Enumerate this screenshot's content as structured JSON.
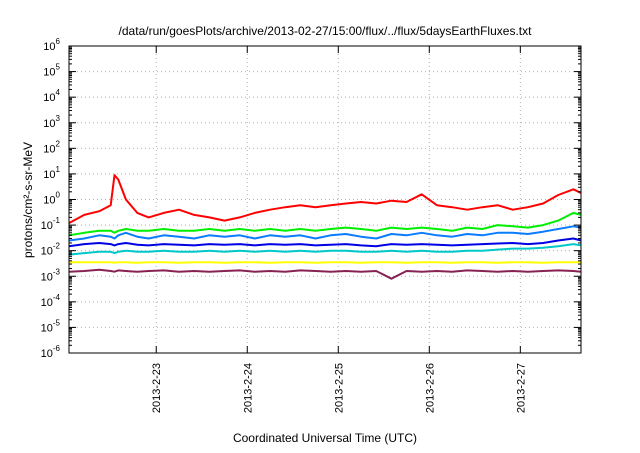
{
  "chart_data": {
    "type": "line",
    "title": "/data/run/goesPlots/archive/2013-02-27/15:00/flux/../flux/5daysEarthFluxes.txt",
    "xlabel": "Coordinated Universal Time (UTC)",
    "ylabel": "protons/cm²-s-sr-MeV",
    "yscale": "log",
    "ylim": [
      1e-06,
      1000000.0
    ],
    "xlim": [
      "2013-02-22T01:00",
      "2013-02-27T16:00"
    ],
    "grid": true,
    "legend": "none",
    "x_tick_labels": [
      "2013-2-23",
      "2013-2-24",
      "2013-2-25",
      "2013-2-26",
      "2013-2-27"
    ],
    "y_tick_labels": [
      {
        "base": "10",
        "exp": "-6"
      },
      {
        "base": "10",
        "exp": "-5"
      },
      {
        "base": "10",
        "exp": "-4"
      },
      {
        "base": "10",
        "exp": "-3"
      },
      {
        "base": "10",
        "exp": "-2"
      },
      {
        "base": "10",
        "exp": "-1"
      },
      {
        "base": "10",
        "exp": "0"
      },
      {
        "base": "10",
        "exp": "1"
      },
      {
        "base": "10",
        "exp": "2"
      },
      {
        "base": "10",
        "exp": "3"
      },
      {
        "base": "10",
        "exp": "4"
      },
      {
        "base": "10",
        "exp": "5"
      },
      {
        "base": "10",
        "exp": "6"
      }
    ],
    "x": [
      "2013-02-22T01:00",
      "2013-02-22T05:00",
      "2013-02-22T09:00",
      "2013-02-22T12:00",
      "2013-02-22T13:00",
      "2013-02-22T14:00",
      "2013-02-22T16:00",
      "2013-02-22T19:00",
      "2013-02-22T22:00",
      "2013-02-23T02:00",
      "2013-02-23T06:00",
      "2013-02-23T10:00",
      "2013-02-23T14:00",
      "2013-02-23T18:00",
      "2013-02-23T22:00",
      "2013-02-24T02:00",
      "2013-02-24T06:00",
      "2013-02-24T10:00",
      "2013-02-24T14:00",
      "2013-02-24T18:00",
      "2013-02-24T22:00",
      "2013-02-25T02:00",
      "2013-02-25T06:00",
      "2013-02-25T10:00",
      "2013-02-25T14:00",
      "2013-02-25T18:00",
      "2013-02-25T22:00",
      "2013-02-26T02:00",
      "2013-02-26T06:00",
      "2013-02-26T10:00",
      "2013-02-26T14:00",
      "2013-02-26T18:00",
      "2013-02-26T22:00",
      "2013-02-27T02:00",
      "2013-02-27T06:00",
      "2013-02-27T10:00",
      "2013-02-27T14:00",
      "2013-02-27T16:00"
    ],
    "series": [
      {
        "color": "#ff0000",
        "values": [
          0.12,
          0.25,
          0.35,
          0.6,
          9,
          6,
          1.0,
          0.3,
          0.2,
          0.3,
          0.4,
          0.25,
          0.2,
          0.15,
          0.2,
          0.3,
          0.4,
          0.5,
          0.6,
          0.5,
          0.6,
          0.7,
          0.8,
          0.7,
          0.9,
          0.8,
          1.6,
          0.6,
          0.5,
          0.4,
          0.5,
          0.6,
          0.4,
          0.5,
          0.7,
          1.5,
          2.5,
          1.8
        ]
      },
      {
        "color": "#00ee00",
        "values": [
          0.04,
          0.05,
          0.06,
          0.06,
          0.05,
          0.06,
          0.07,
          0.06,
          0.06,
          0.07,
          0.06,
          0.06,
          0.07,
          0.06,
          0.07,
          0.06,
          0.07,
          0.06,
          0.07,
          0.06,
          0.07,
          0.08,
          0.07,
          0.06,
          0.08,
          0.07,
          0.08,
          0.07,
          0.06,
          0.08,
          0.07,
          0.1,
          0.09,
          0.08,
          0.1,
          0.15,
          0.3,
          0.25
        ]
      },
      {
        "color": "#00c8c8",
        "values": [
          0.007,
          0.008,
          0.009,
          0.009,
          0.008,
          0.009,
          0.01,
          0.009,
          0.009,
          0.01,
          0.009,
          0.009,
          0.01,
          0.009,
          0.01,
          0.009,
          0.01,
          0.009,
          0.01,
          0.009,
          0.01,
          0.01,
          0.009,
          0.009,
          0.01,
          0.009,
          0.01,
          0.009,
          0.009,
          0.01,
          0.01,
          0.011,
          0.012,
          0.012,
          0.013,
          0.015,
          0.018,
          0.016
        ]
      },
      {
        "color": "#0a7cff",
        "values": [
          0.025,
          0.03,
          0.04,
          0.035,
          0.03,
          0.04,
          0.05,
          0.035,
          0.03,
          0.04,
          0.035,
          0.03,
          0.04,
          0.035,
          0.04,
          0.03,
          0.04,
          0.035,
          0.04,
          0.03,
          0.04,
          0.045,
          0.035,
          0.03,
          0.045,
          0.04,
          0.05,
          0.04,
          0.035,
          0.045,
          0.04,
          0.05,
          0.05,
          0.045,
          0.055,
          0.07,
          0.09,
          0.08
        ]
      },
      {
        "color": "#0000e6",
        "values": [
          0.015,
          0.018,
          0.02,
          0.018,
          0.016,
          0.018,
          0.02,
          0.017,
          0.016,
          0.018,
          0.017,
          0.016,
          0.018,
          0.017,
          0.018,
          0.016,
          0.018,
          0.017,
          0.018,
          0.016,
          0.017,
          0.018,
          0.016,
          0.015,
          0.018,
          0.017,
          0.018,
          0.017,
          0.016,
          0.017,
          0.018,
          0.019,
          0.02,
          0.018,
          0.02,
          0.025,
          0.03,
          0.025
        ]
      },
      {
        "color": "#ffff00",
        "values": [
          0.0035,
          0.0035,
          0.0035,
          0.0035,
          0.0034,
          0.0035,
          0.0035,
          0.0034,
          0.0035,
          0.0035,
          0.0034,
          0.0035,
          0.0035,
          0.0034,
          0.0035,
          0.0035,
          0.0034,
          0.0035,
          0.0035,
          0.0034,
          0.0035,
          0.0035,
          0.0034,
          0.0035,
          0.0035,
          0.0034,
          0.0035,
          0.0035,
          0.0034,
          0.0035,
          0.0035,
          0.0034,
          0.0035,
          0.0035,
          0.0034,
          0.0035,
          0.0035,
          0.0035
        ]
      },
      {
        "color": "#882255",
        "values": [
          0.0015,
          0.0016,
          0.0018,
          0.0016,
          0.0015,
          0.0017,
          0.0016,
          0.0015,
          0.0016,
          0.0017,
          0.0015,
          0.0016,
          0.0015,
          0.0016,
          0.0017,
          0.0015,
          0.0016,
          0.0015,
          0.0017,
          0.0016,
          0.0015,
          0.0016,
          0.0015,
          0.0016,
          0.0008,
          0.0016,
          0.0015,
          0.0016,
          0.0015,
          0.0017,
          0.0016,
          0.0015,
          0.0016,
          0.0015,
          0.0016,
          0.0017,
          0.0016,
          0.0015
        ]
      }
    ]
  }
}
